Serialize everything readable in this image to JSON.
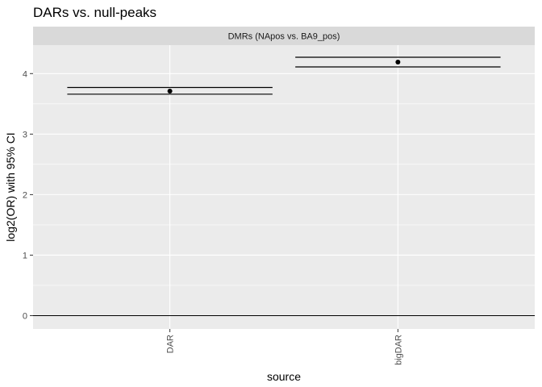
{
  "chart_data": {
    "type": "scatter",
    "title": "DARs vs. null-peaks",
    "facet_label": "DMRs (NApos vs. BA9_pos)",
    "xlabel": "source",
    "ylabel": "log2(OR) with 95% CI",
    "categories": [
      "DAR",
      "bigDAR"
    ],
    "series": [
      {
        "values": [
          3.71,
          4.19
        ],
        "ci_lower": [
          3.66,
          4.11
        ],
        "ci_upper": [
          3.77,
          4.27
        ]
      }
    ],
    "y_ticks": [
      0,
      1,
      2,
      3,
      4
    ],
    "ylim": [
      -0.22,
      4.47
    ],
    "reference_line": 0,
    "grid": true,
    "legend": "none",
    "colors": {
      "panel_bg": "#ebebeb",
      "strip_bg": "#d9d9d9",
      "grid": "#ffffff",
      "marks": "#000000"
    }
  }
}
